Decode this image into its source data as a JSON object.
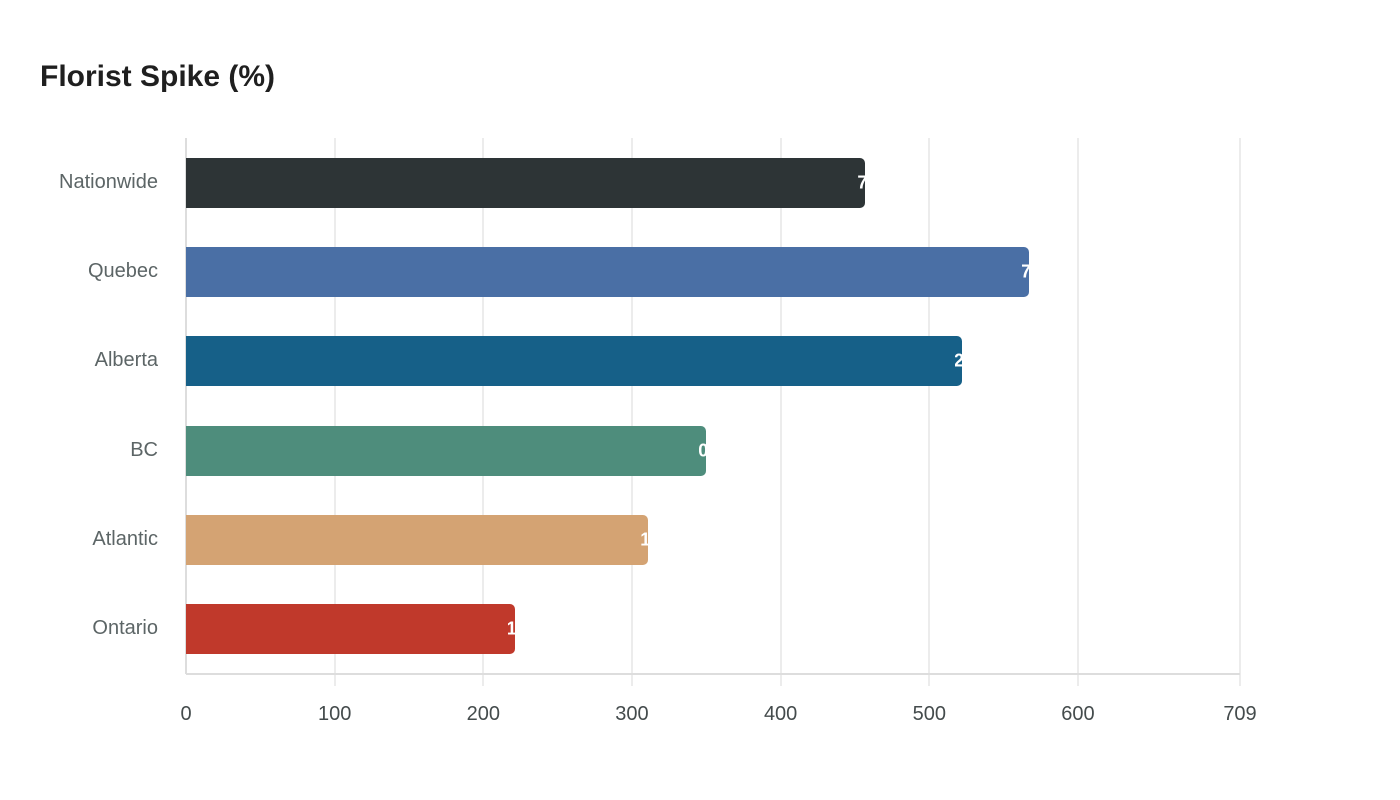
{
  "chart_data": {
    "type": "bar",
    "orientation": "horizontal",
    "title": "Florist Spike (%)",
    "xlabel": "",
    "ylabel": "",
    "categories": [
      "Nationwide",
      "Quebec",
      "Alberta",
      "BC",
      "Atlantic",
      "Ontario"
    ],
    "values": [
      457,
      567,
      522,
      350,
      311,
      221
    ],
    "colors": [
      "#2d3436",
      "#4a6fa5",
      "#166088",
      "#4e8d7c",
      "#d4a373",
      "#c0392b"
    ],
    "xlim": [
      0,
      709
    ],
    "xticks": [
      "0",
      "100",
      "200",
      "300",
      "400",
      "500",
      "600",
      "709"
    ],
    "grid": true,
    "legend": "none"
  },
  "title": "Florist Spike (%)"
}
